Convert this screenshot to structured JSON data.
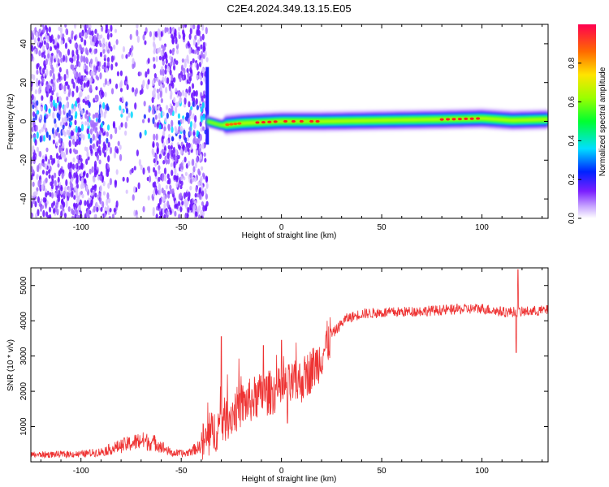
{
  "title": "C2E4.2024.349.13.15.E05",
  "chart_data": [
    {
      "type": "heatmap",
      "xlabel": "Height of straight line (km)",
      "ylabel": "Frequency (Hz)",
      "xlim": [
        -125,
        133
      ],
      "ylim": [
        -50,
        50
      ],
      "xticks": [
        -100,
        -50,
        0,
        50,
        100
      ],
      "yticks": [
        -40,
        -20,
        0,
        20,
        40
      ],
      "colorbar": {
        "label": "Normalized spectral amplitude",
        "range": [
          0,
          1
        ],
        "ticks": [
          0.0,
          0.2,
          0.4,
          0.6,
          0.8
        ]
      },
      "track_center_hz": [
        {
          "x": -37,
          "y": 0
        },
        {
          "x": -30,
          "y": -2
        },
        {
          "x": -20,
          "y": -1
        },
        {
          "x": 0,
          "y": 0
        },
        {
          "x": 20,
          "y": 0
        },
        {
          "x": 50,
          "y": 0.5
        },
        {
          "x": 80,
          "y": 1
        },
        {
          "x": 100,
          "y": 1.5
        },
        {
          "x": 115,
          "y": 0.5
        },
        {
          "x": 133,
          "y": 1
        }
      ],
      "noise_region_km": [
        -125,
        -37
      ]
    },
    {
      "type": "line",
      "xlabel": "Height of straight line (km)",
      "ylabel": "SNR (10 * v/v)",
      "xlim": [
        -125,
        133
      ],
      "ylim": [
        0,
        5500
      ],
      "xticks": [
        -100,
        -50,
        0,
        50,
        100
      ],
      "yticks": [
        1000,
        2000,
        3000,
        4000,
        5000
      ],
      "color": "#ee3333",
      "baseline": [
        {
          "x": -125,
          "y": 200
        },
        {
          "x": -100,
          "y": 220
        },
        {
          "x": -90,
          "y": 280
        },
        {
          "x": -80,
          "y": 450
        },
        {
          "x": -70,
          "y": 600
        },
        {
          "x": -62,
          "y": 520
        },
        {
          "x": -55,
          "y": 250
        },
        {
          "x": -48,
          "y": 230
        },
        {
          "x": -40,
          "y": 450
        },
        {
          "x": -30,
          "y": 1100
        },
        {
          "x": -20,
          "y": 1600
        },
        {
          "x": -10,
          "y": 1900
        },
        {
          "x": 0,
          "y": 2050
        },
        {
          "x": 10,
          "y": 2300
        },
        {
          "x": 18,
          "y": 2800
        },
        {
          "x": 25,
          "y": 3600
        },
        {
          "x": 32,
          "y": 4050
        },
        {
          "x": 40,
          "y": 4200
        },
        {
          "x": 60,
          "y": 4250
        },
        {
          "x": 80,
          "y": 4300
        },
        {
          "x": 100,
          "y": 4350
        },
        {
          "x": 110,
          "y": 4250
        },
        {
          "x": 120,
          "y": 4250
        },
        {
          "x": 133,
          "y": 4300
        }
      ],
      "spikes": [
        {
          "x": -30,
          "y": 3550
        },
        {
          "x": -9,
          "y": 3300
        },
        {
          "x": 0,
          "y": 3450
        },
        {
          "x": 3,
          "y": 1100
        },
        {
          "x": 117,
          "y": 3100
        },
        {
          "x": 118,
          "y": 5450
        }
      ]
    }
  ]
}
